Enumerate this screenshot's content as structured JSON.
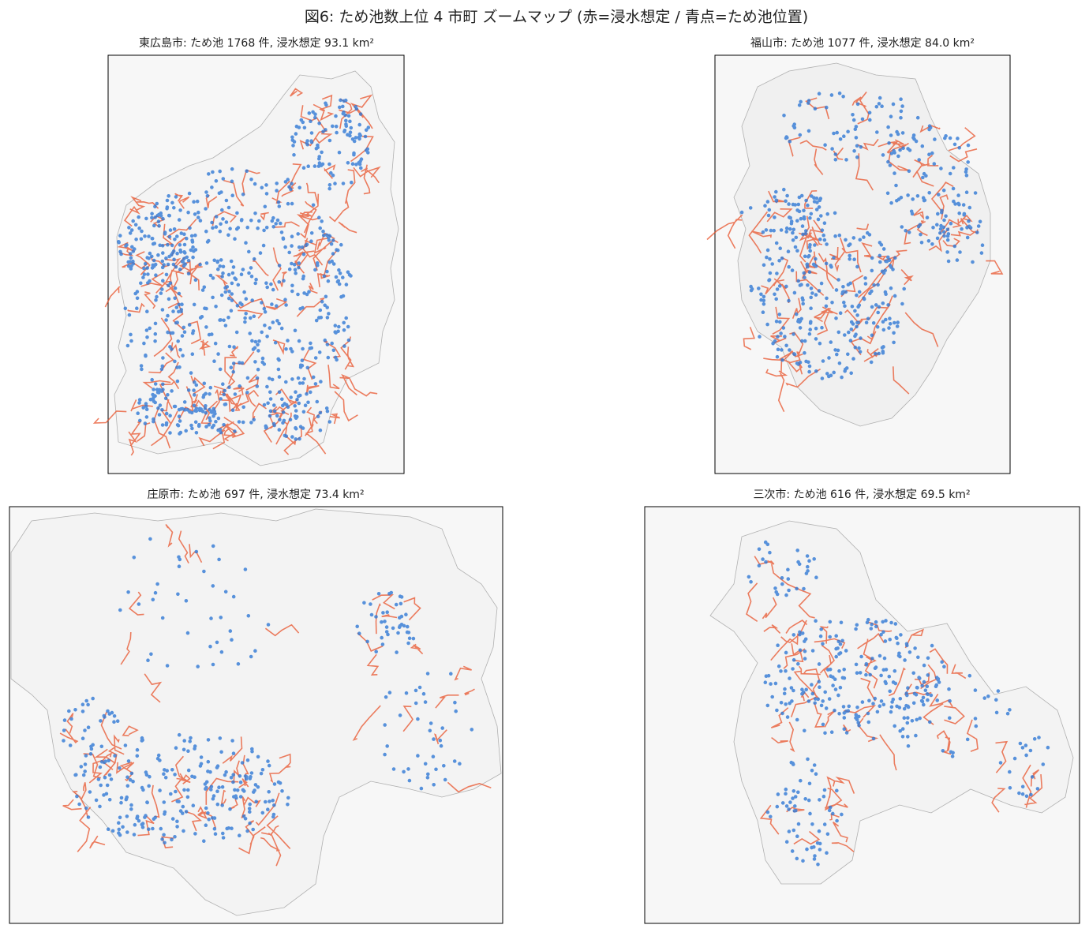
{
  "title": "図6: ため池数上位 4 市町 ズームマップ (赤=浸水想定 / 青点=ため池位置)",
  "panels": [
    {
      "title": "東広島市: ため池 1768 件, 浸水想定 93.1 km²"
    },
    {
      "title": "福山市: ため池 1077 件, 浸水想定 84.0 km²"
    },
    {
      "title": "庄原市: ため池 697 件, 浸水想定 73.4 km²"
    },
    {
      "title": "三次市: ため池 616 件, 浸水想定 69.5 km²"
    }
  ]
}
